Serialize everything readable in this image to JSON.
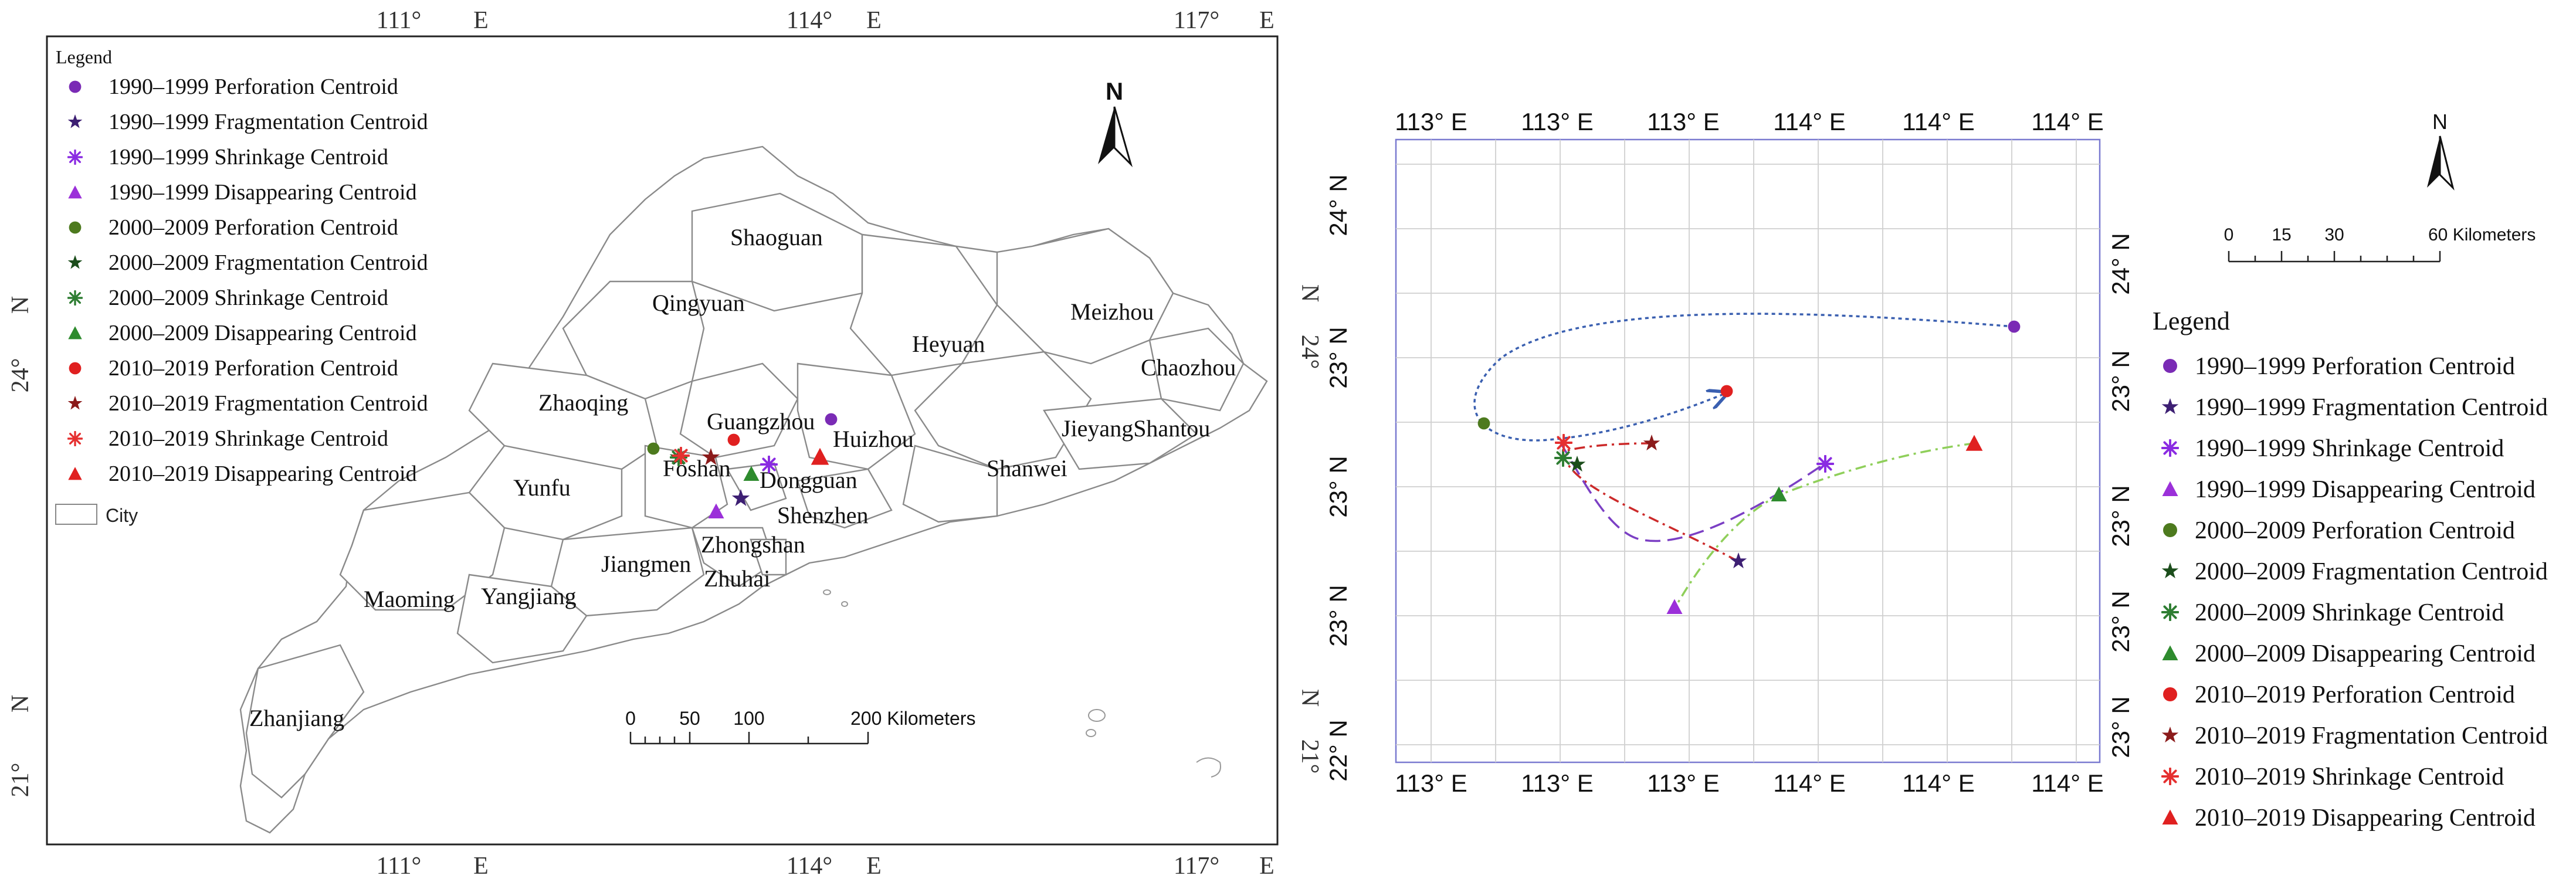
{
  "left_map": {
    "top_ticks": [
      "111°",
      "E",
      "114°",
      "E",
      "117°",
      "E"
    ],
    "bottom_ticks": [
      "111°",
      "E",
      "114°",
      "E",
      "117°",
      "E"
    ],
    "left_ticks": [
      "24°",
      "N",
      "21°",
      "N"
    ],
    "right_ticks": [
      "24°",
      "N",
      "21°",
      "N"
    ],
    "north_label": "N",
    "legend": {
      "title": "Legend",
      "items": [
        {
          "label": "1990–1999 Perforation Centroid",
          "marker": "circle",
          "color": "#7a2bb5"
        },
        {
          "label": "1990–1999 Fragmentation Centroid",
          "marker": "star",
          "color": "#3d1f73"
        },
        {
          "label": "1990–1999 Shrinkage Centroid",
          "marker": "asterisk",
          "color": "#8a2be2"
        },
        {
          "label": "1990–1999 Disappearing Centroid",
          "marker": "triangle",
          "color": "#9b30d9"
        },
        {
          "label": "2000–2009 Perforation Centroid",
          "marker": "circle",
          "color": "#4d7a1e"
        },
        {
          "label": "2000–2009 Fragmentation Centroid",
          "marker": "star",
          "color": "#1b4d1b"
        },
        {
          "label": "2000–2009 Shrinkage Centroid",
          "marker": "asterisk",
          "color": "#2e7d32"
        },
        {
          "label": "2000–2009 Disappearing Centroid",
          "marker": "triangle",
          "color": "#2e8b2e"
        },
        {
          "label": "2010–2019 Perforation Centroid",
          "marker": "circle",
          "color": "#e02020"
        },
        {
          "label": "2010–2019 Fragmentation Centroid",
          "marker": "star",
          "color": "#8b1a1a"
        },
        {
          "label": "2010–2019 Shrinkage Centroid",
          "marker": "asterisk",
          "color": "#e53030"
        },
        {
          "label": "2010–2019 Disappearing Centroid",
          "marker": "triangle",
          "color": "#e02020"
        }
      ],
      "city_label": "City"
    },
    "cities": [
      "Shaoguan",
      "Qingyuan",
      "Meizhou",
      "Heyuan",
      "Chaozhou",
      "Zhaoqing",
      "Guangzhou",
      "Huizhou",
      "JieyangShantou",
      "Yunfu",
      "Foshan",
      "Dongguan",
      "Shanwei",
      "Shenzhen",
      "Zhongshan",
      "Jiangmen",
      "Zhuhai",
      "Maoming",
      "Yangjiang",
      "Zhanjiang"
    ],
    "scale_bar": {
      "ticks": [
        "0",
        "50",
        "100",
        "200 Kilometers"
      ]
    }
  },
  "right_map": {
    "top_ticks": [
      "113° E",
      "113° E",
      "113° E",
      "114° E",
      "114° E",
      "114° E"
    ],
    "bottom_ticks": [
      "113° E",
      "113° E",
      "113° E",
      "114° E",
      "114° E",
      "114° E"
    ],
    "left_ticks": [
      "24° N",
      "23° N",
      "23° N",
      "23° N",
      "23° N",
      "22° N"
    ],
    "right_ticks": [
      "24° N",
      "23° N",
      "23° N",
      "23° N",
      "23° N"
    ],
    "north_label": "N",
    "scale_bar": {
      "ticks": [
        "0",
        "15",
        "30",
        "60 Kilometers"
      ]
    },
    "legend": {
      "title": "Legend",
      "items": [
        "1990–1999 Perforation Centroid",
        "1990–1999 Fragmentation Centroid",
        "1990–1999 Shrinkage Centroid",
        "1990–1999 Disappearing Centroid",
        "2000–2009 Perforation Centroid",
        "2000–2009 Fragmentation Centroid",
        "2000–2009 Shrinkage Centroid",
        "2000–2009 Disappearing Centroid",
        "2010–2019 Perforation Centroid",
        "2010–2019 Fragmentation Centroid",
        "2010–2019 Shrinkage Centroid",
        "2010–2019 Disappearing Centroid"
      ]
    },
    "trajectories": [
      {
        "type": "perforation",
        "color": "#3a5fb0",
        "style": "dotted"
      },
      {
        "type": "fragmentation",
        "color": "#cc2a2a",
        "style": "dashdot"
      },
      {
        "type": "shrinkage",
        "color": "#7b3fc4",
        "style": "dashed"
      },
      {
        "type": "disappearing",
        "color": "#8fcf5a",
        "style": "dashdot"
      }
    ]
  }
}
